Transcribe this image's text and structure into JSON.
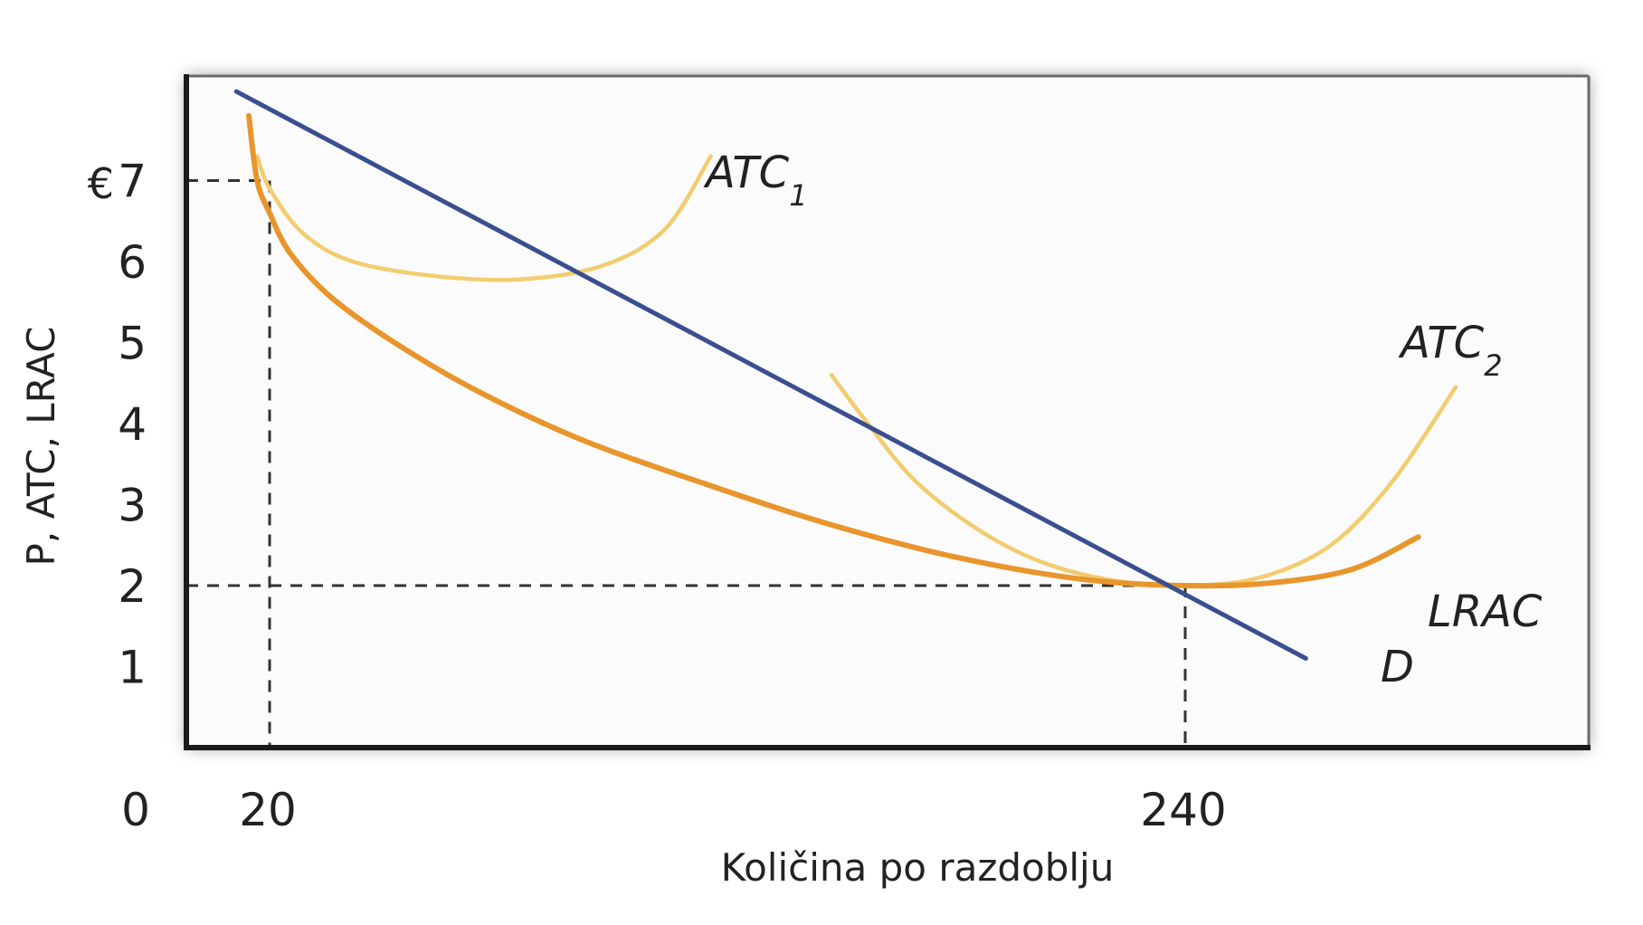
{
  "chart_data": {
    "type": "line",
    "xlabel": "Količina po razdoblju",
    "ylabel": "P, ATC, LRAC",
    "currency_symbol": "€",
    "x_origin_label": "0",
    "xlim": [
      0,
      300
    ],
    "ylim": [
      0,
      8.3
    ],
    "x_ticks": [
      {
        "value": 20,
        "label": "20"
      },
      {
        "value": 240,
        "label": "240"
      }
    ],
    "y_ticks": [
      {
        "value": 1,
        "label": "1"
      },
      {
        "value": 2,
        "label": "2"
      },
      {
        "value": 3,
        "label": "3"
      },
      {
        "value": 4,
        "label": "4"
      },
      {
        "value": 5,
        "label": "5"
      },
      {
        "value": 6,
        "label": "6"
      },
      {
        "value": 7,
        "label": "7"
      }
    ],
    "grid": false,
    "colors": {
      "demand": "#3a4f8f",
      "lrac": "#e8952c",
      "atc": "#f2cc6e",
      "axis": "#1a1a1a",
      "guide": "#333333"
    },
    "series": [
      {
        "name": "D",
        "label_main": "D",
        "color": "#3a4f8f",
        "points": [
          [
            12,
            8.1
          ],
          [
            269,
            1.1
          ]
        ]
      },
      {
        "name": "LRAC",
        "label_main": "LRAC",
        "color": "#e8952c",
        "points": [
          [
            15,
            7.8
          ],
          [
            17,
            7.0
          ],
          [
            20,
            6.6
          ],
          [
            25,
            6.1
          ],
          [
            35,
            5.55
          ],
          [
            50,
            5.0
          ],
          [
            70,
            4.4
          ],
          [
            95,
            3.8
          ],
          [
            125,
            3.25
          ],
          [
            155,
            2.75
          ],
          [
            185,
            2.35
          ],
          [
            215,
            2.08
          ],
          [
            240,
            2.0
          ],
          [
            260,
            2.03
          ],
          [
            280,
            2.2
          ],
          [
            296,
            2.6
          ]
        ]
      },
      {
        "name": "ATC1",
        "label_main": "ATC",
        "label_sub": "1",
        "color": "#f2cc6e",
        "points": [
          [
            17,
            7.3
          ],
          [
            20,
            6.9
          ],
          [
            28,
            6.35
          ],
          [
            40,
            6.0
          ],
          [
            60,
            5.82
          ],
          [
            80,
            5.78
          ],
          [
            100,
            5.95
          ],
          [
            115,
            6.4
          ],
          [
            126,
            7.3
          ]
        ]
      },
      {
        "name": "ATC2",
        "label_main": "ATC",
        "label_sub": "2",
        "color": "#f2cc6e",
        "points": [
          [
            155,
            4.6
          ],
          [
            163,
            4.05
          ],
          [
            175,
            3.3
          ],
          [
            190,
            2.7
          ],
          [
            205,
            2.3
          ],
          [
            222,
            2.07
          ],
          [
            240,
            2.0
          ],
          [
            258,
            2.1
          ],
          [
            275,
            2.5
          ],
          [
            290,
            3.3
          ],
          [
            305,
            4.45
          ]
        ]
      }
    ],
    "guides": [
      {
        "x": 20,
        "y": 7
      },
      {
        "x": 240,
        "y": 2
      }
    ]
  }
}
